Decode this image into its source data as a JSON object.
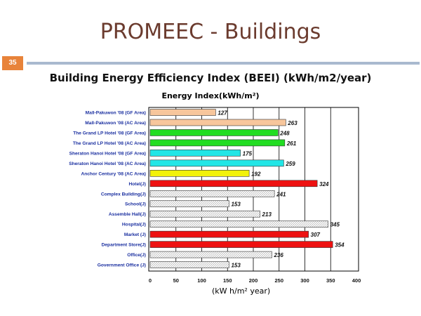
{
  "slide": {
    "title": "PROMEEC - Buildings",
    "page_number": "35",
    "subtitle": "Building Energy Efficiency Index (BEEI) (kWh/m2/year)"
  },
  "chart_data": {
    "type": "bar",
    "orientation": "horizontal",
    "title": "Energy  Index(kWh/m²)",
    "xlabel": "(kW h/m² year)",
    "xlim": [
      0,
      400
    ],
    "x_ticks": [
      0,
      50,
      100,
      150,
      200,
      250,
      300,
      350,
      400
    ],
    "grid": true,
    "categories": [
      "Mall-Pakuwon '08 (GF Area)",
      "Mall-Pakuwon '08 (AC Area)",
      "The Grand LP Hotel '08 (GF Area)",
      "The Grand LP Hotel '08 (AC Area)",
      "Sheraton Hanoi Hotel '08 (GF Area)",
      "Sheraton Hanoi Hotel '08 (AC Area)",
      "Anchor Century '08 (AC Area)",
      "Hotel(J)",
      "Complex Building(J)",
      "School(J)",
      "Assemble Hall(J)",
      "Hospital(J)",
      "Market (J)",
      "Department Store(J)",
      "Office(J)",
      "Government Office (J)"
    ],
    "values": [
      127,
      263,
      248,
      261,
      175,
      259,
      192,
      324,
      241,
      153,
      213,
      345,
      307,
      354,
      236,
      153
    ],
    "colors": [
      "#f7c69c",
      "#f7c69c",
      "#22dd22",
      "#22dd22",
      "#22e6e6",
      "#22e6e6",
      "#f2f20a",
      "#ee1111",
      "pattern",
      "pattern",
      "pattern",
      "pattern",
      "#ee1111",
      "#ee1111",
      "pattern",
      "pattern"
    ]
  }
}
